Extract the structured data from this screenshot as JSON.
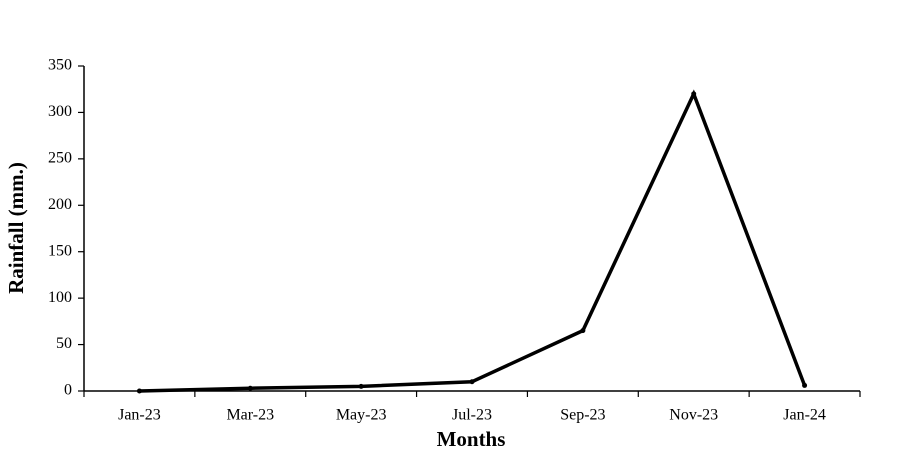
{
  "chart_data": {
    "type": "line",
    "x_label": "Months",
    "y_label": "Rainfall (mm.)",
    "categories": [
      "Jan-23",
      "Mar-23",
      "May-23",
      "Jul-23",
      "Sep-23",
      "Nov-23",
      "Jan-24"
    ],
    "values": [
      0,
      3,
      5,
      10,
      65,
      320,
      6
    ],
    "color": "#000000",
    "ylim": [
      0,
      350
    ],
    "yticks": [
      0,
      50,
      100,
      150,
      200,
      250,
      300,
      350
    ],
    "grid": false
  }
}
